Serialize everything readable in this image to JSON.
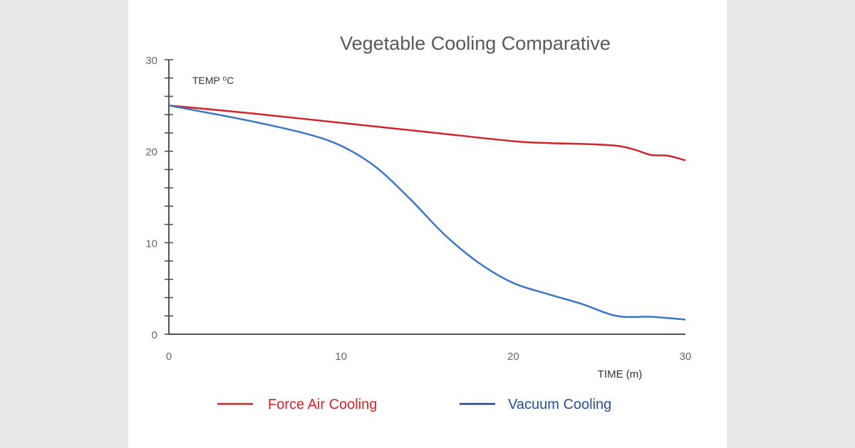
{
  "chart_data": {
    "type": "line",
    "title": "Vegetable Cooling Comparative",
    "xlabel": "TIME (m)",
    "ylabel": "TEMP ⁰C",
    "xlim": [
      0,
      30
    ],
    "ylim": [
      0,
      30
    ],
    "x_ticks": [
      0,
      10,
      20,
      30
    ],
    "y_ticks": [
      0,
      10,
      20,
      30
    ],
    "y_minor_step": 2,
    "grid": false,
    "legend_position": "bottom",
    "series": [
      {
        "name": "Force Air Cooling",
        "color": "#d2232a",
        "x": [
          0,
          5,
          10,
          15,
          20,
          22,
          24,
          26,
          27,
          28,
          29,
          30
        ],
        "y": [
          25.0,
          24.1,
          23.1,
          22.1,
          21.1,
          20.9,
          20.8,
          20.6,
          20.2,
          19.6,
          19.5,
          19.0
        ]
      },
      {
        "name": "Vacuum Cooling",
        "color": "#3b78c4",
        "x": [
          0,
          2,
          5,
          8,
          10,
          12,
          14,
          16,
          18,
          20,
          22,
          24,
          26,
          28,
          30
        ],
        "y": [
          25.0,
          24.3,
          23.2,
          21.9,
          20.6,
          18.3,
          14.8,
          10.9,
          7.8,
          5.6,
          4.4,
          3.3,
          2.0,
          1.9,
          1.6
        ]
      }
    ]
  }
}
